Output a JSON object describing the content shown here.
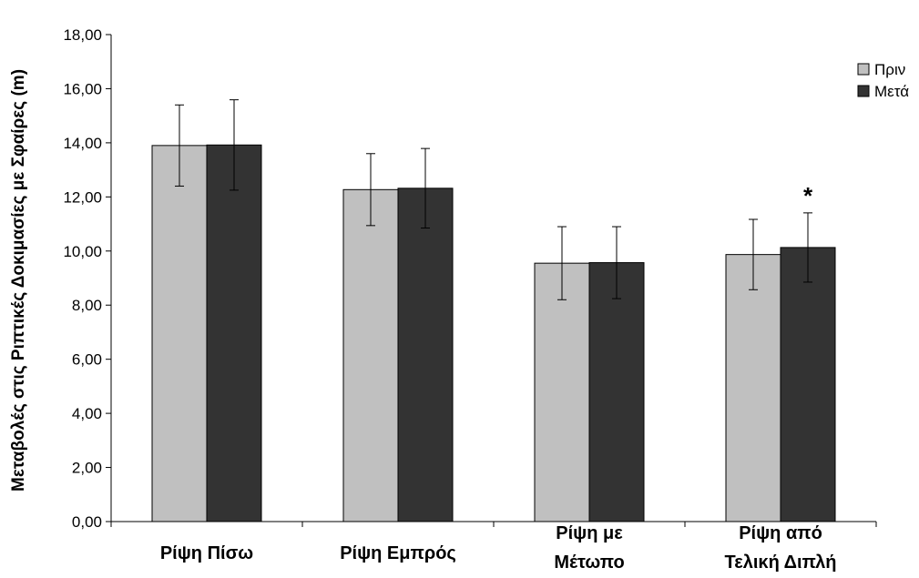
{
  "chart_data": {
    "type": "bar",
    "title": "",
    "xlabel": "",
    "ylabel": "Μεταβολές στις Ριπτικές Δοκιμασίες με Σφαίρες (m)",
    "ylim": [
      0,
      18
    ],
    "yticks": [
      "0,00",
      "2,00",
      "4,00",
      "6,00",
      "8,00",
      "10,00",
      "12,00",
      "14,00",
      "16,00",
      "18,00"
    ],
    "categories": [
      [
        "Ρίψη Πίσω"
      ],
      [
        "Ρίψη Εμπρός"
      ],
      [
        "Ρίψη με",
        "Μέτωπο"
      ],
      [
        "Ρίψη από",
        "Τελική Διπλή"
      ]
    ],
    "series": [
      {
        "name": "Πριν",
        "color": "#c0c0c0",
        "values": [
          13.9,
          12.27,
          9.55,
          9.87
        ],
        "errors": [
          1.5,
          1.33,
          1.35,
          1.3
        ]
      },
      {
        "name": "Μετά",
        "color": "#333333",
        "values": [
          13.92,
          12.32,
          9.57,
          10.13
        ],
        "errors": [
          1.67,
          1.47,
          1.33,
          1.28
        ]
      }
    ],
    "annotations": [
      {
        "text": "*",
        "category_index": 3,
        "series_index": 1
      }
    ],
    "legend": {
      "position": "top-right"
    },
    "grid": false
  }
}
